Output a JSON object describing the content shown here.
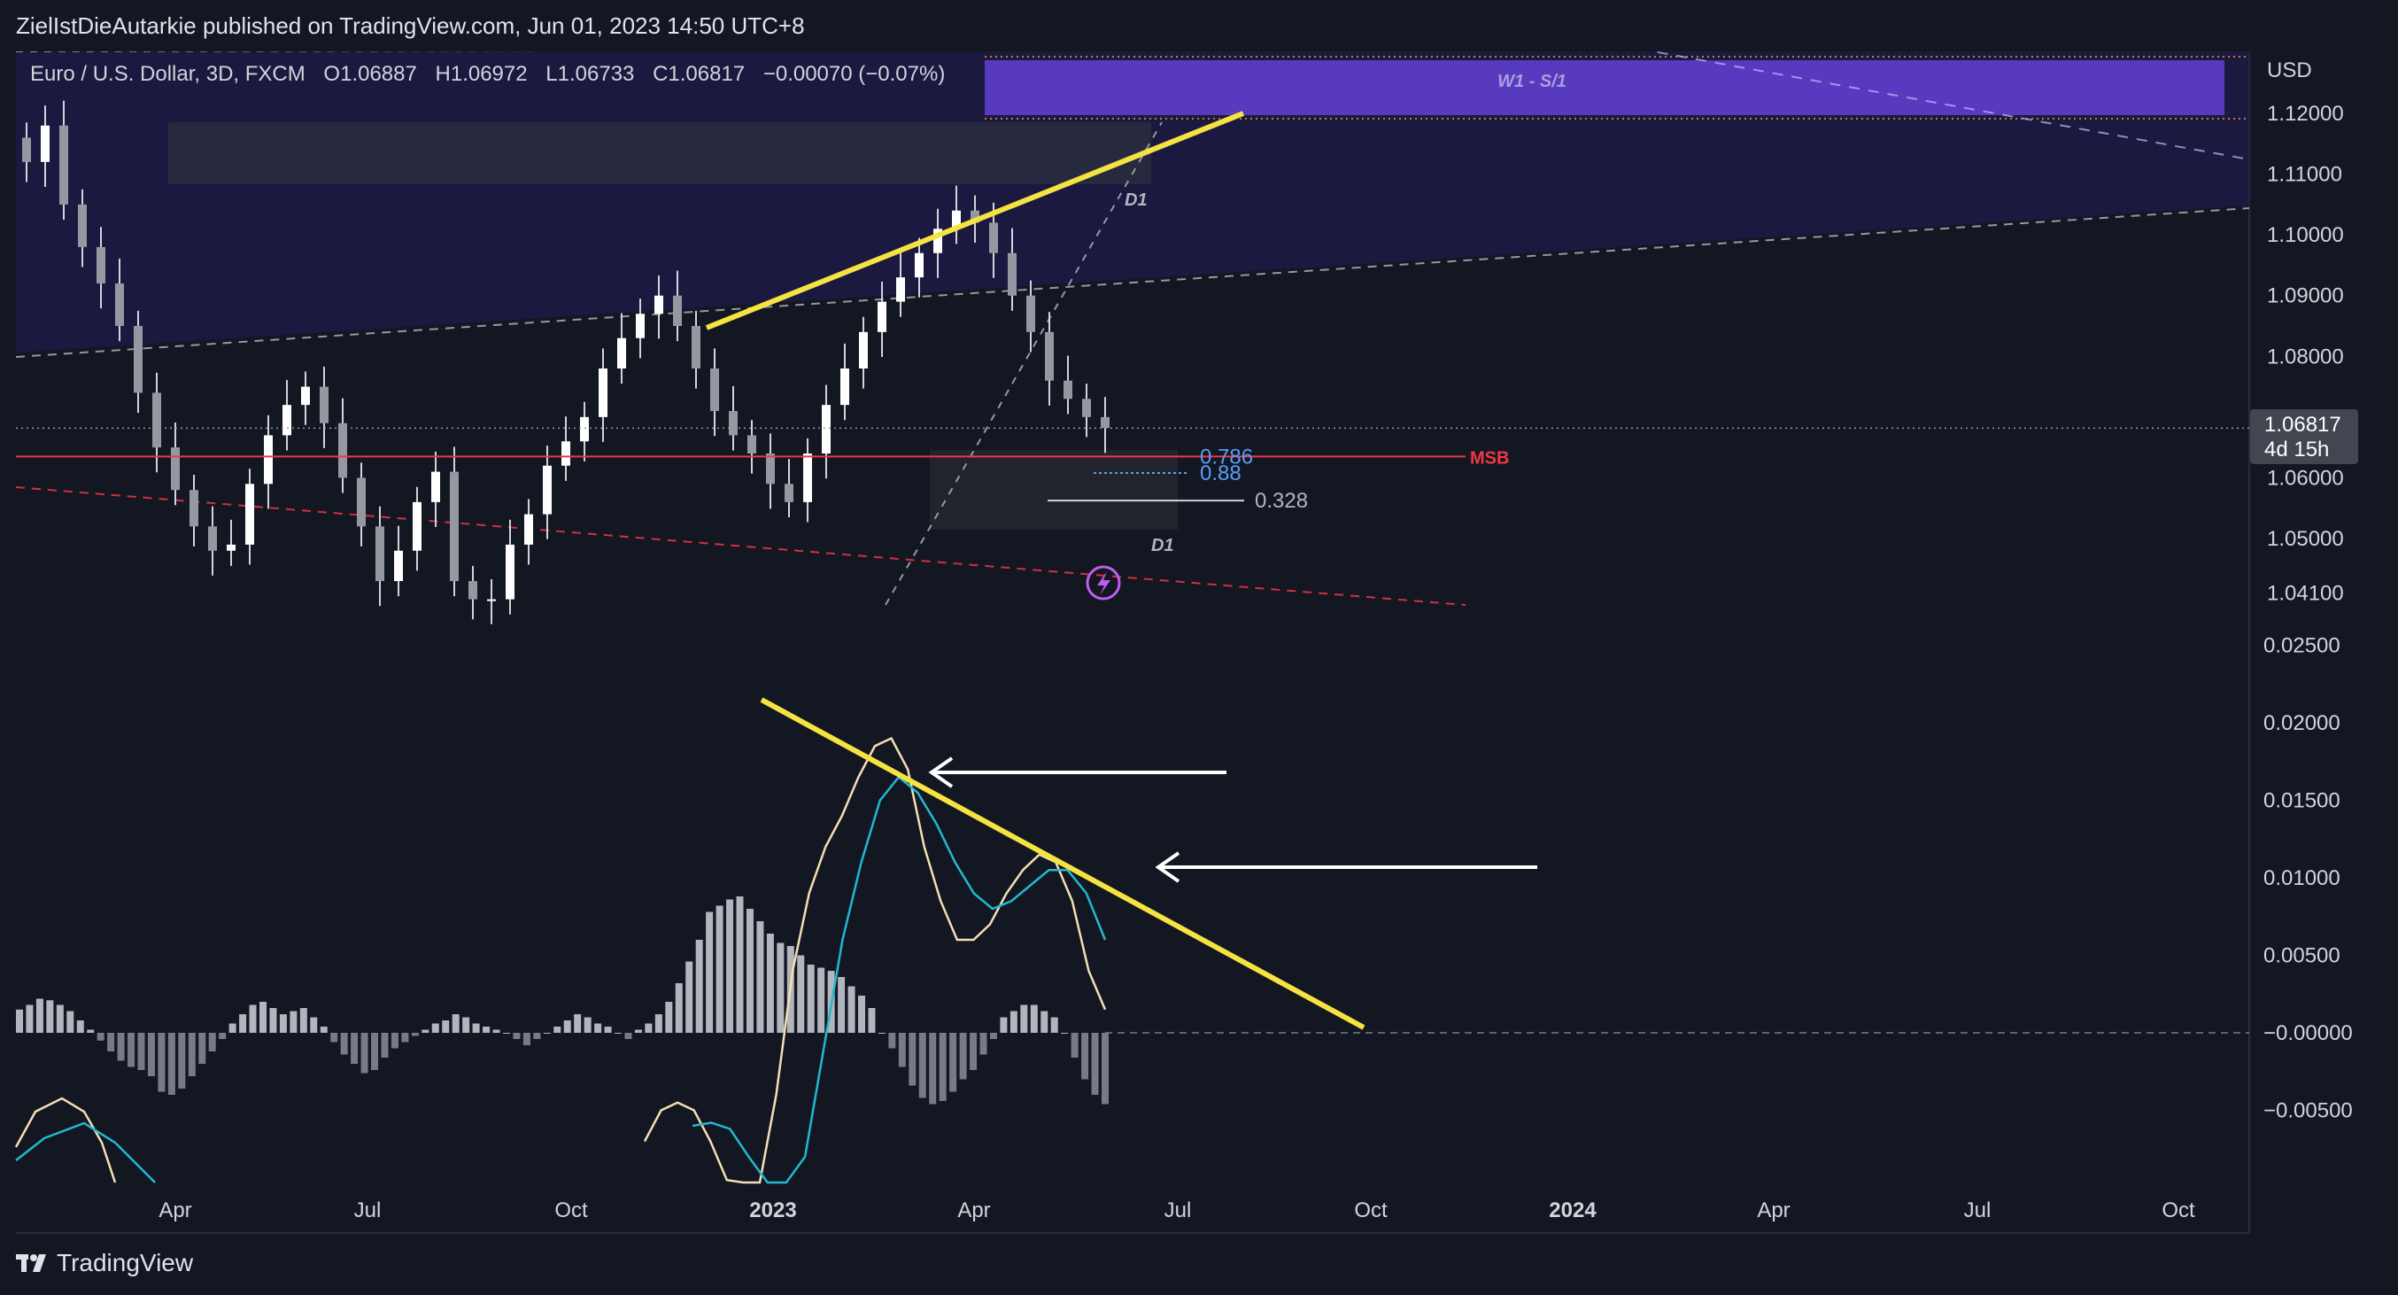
{
  "header": {
    "published": "ZielIstDieAutarkie published on TradingView.com, Jun 01, 2023 14:50 UTC+8"
  },
  "legend": {
    "symbol": "Euro / U.S. Dollar, 3D, FXCM",
    "open": "O1.06887",
    "high": "H1.06972",
    "low": "L1.06733",
    "close": "C1.06817",
    "change": "−0.00070 (−0.07%)"
  },
  "price_axis": {
    "currency": "USD",
    "current_price": "1.06817",
    "countdown": "4d 15h"
  },
  "annotations": {
    "zone_label": "W1 - S/1",
    "d1_top": "D1",
    "d1_bottom": "D1",
    "msb": "MSB",
    "fib_786": "0.786",
    "fib_88": "0.88",
    "fib_328": "0.328"
  },
  "branding": {
    "logo_text": "TradingView"
  },
  "colors": {
    "background": "#131722",
    "zone_purple": "#5b3cc4",
    "supply_zone": "#1f1b4a",
    "trendline_yellow": "#f5e342",
    "msb_red": "#f23645",
    "fib_blue": "#5b9cf6",
    "macd_line": "#f5deb3",
    "signal_line": "#22b8cf"
  },
  "chart_data": [
    {
      "type": "candlestick",
      "title": "Euro / U.S. Dollar, 3D, FXCM",
      "y_ticks": [
        "1.12000",
        "1.11000",
        "1.10000",
        "1.09000",
        "1.08000",
        "1.06000",
        "1.05000",
        "1.04100"
      ],
      "x_ticks": [
        "Apr",
        "Jul",
        "Oct",
        "2023",
        "Apr",
        "Jul",
        "Oct",
        "2024",
        "Apr",
        "Jul",
        "Oct"
      ],
      "ylim": [
        1.039,
        1.127
      ],
      "last_close": 1.06817,
      "levels": {
        "msb": 1.0635,
        "fib_0786": 1.0635,
        "fib_088": 1.0608,
        "fib_0328": 1.058
      },
      "approx_closes": [
        1.112,
        1.118,
        1.105,
        1.098,
        1.092,
        1.085,
        1.074,
        1.065,
        1.058,
        1.052,
        1.048,
        1.049,
        1.059,
        1.067,
        1.072,
        1.075,
        1.069,
        1.06,
        1.052,
        1.043,
        1.048,
        1.056,
        1.061,
        1.043,
        1.04,
        1.04,
        1.049,
        1.054,
        1.062,
        1.066,
        1.07,
        1.078,
        1.083,
        1.087,
        1.09,
        1.085,
        1.078,
        1.071,
        1.067,
        1.064,
        1.059,
        1.056,
        1.064,
        1.072,
        1.078,
        1.084,
        1.089,
        1.093,
        1.097,
        1.101,
        1.104,
        1.102,
        1.097,
        1.09,
        1.084,
        1.076,
        1.073,
        1.07,
        1.0682
      ]
    },
    {
      "type": "bar",
      "title": "MACD",
      "y_ticks": [
        "0.02500",
        "0.02000",
        "0.01500",
        "0.01000",
        "0.00500",
        "−0.00000",
        "−0.00500"
      ],
      "ylim": [
        -0.0095,
        0.0255
      ],
      "histogram": [
        0.0015,
        0.0018,
        0.0022,
        0.0021,
        0.0018,
        0.0014,
        0.0008,
        0.0002,
        -0.0005,
        -0.0012,
        -0.0018,
        -0.0022,
        -0.0024,
        -0.0028,
        -0.0038,
        -0.004,
        -0.0036,
        -0.0028,
        -0.002,
        -0.0012,
        -0.0004,
        0.0006,
        0.0012,
        0.0018,
        0.002,
        0.0016,
        0.0012,
        0.0014,
        0.0016,
        0.001,
        0.0004,
        -0.0006,
        -0.0014,
        -0.002,
        -0.0026,
        -0.0024,
        -0.0016,
        -0.001,
        -0.0006,
        -0.0002,
        0.0002,
        0.0006,
        0.0008,
        0.0012,
        0.001,
        0.0006,
        0.0004,
        0.0002,
        0.0,
        -0.0004,
        -0.0008,
        -0.0004,
        0.0,
        0.0004,
        0.0008,
        0.0012,
        0.001,
        0.0006,
        0.0004,
        0.0,
        -0.0004,
        0.0002,
        0.0006,
        0.0012,
        0.002,
        0.0032,
        0.0046,
        0.006,
        0.0078,
        0.0082,
        0.0086,
        0.0088,
        0.008,
        0.0072,
        0.0064,
        0.0058,
        0.0056,
        0.005,
        0.0044,
        0.0042,
        0.004,
        0.0036,
        0.003,
        0.0024,
        0.0016,
        0.0,
        -0.001,
        -0.0022,
        -0.0034,
        -0.0042,
        -0.0046,
        -0.0044,
        -0.0038,
        -0.003,
        -0.0024,
        -0.0014,
        -0.0004,
        0.001,
        0.0014,
        0.0018,
        0.0018,
        0.0014,
        0.001,
        0.0,
        -0.0016,
        -0.003,
        -0.004,
        -0.0046
      ],
      "macd": [
        -0.007,
        -0.005,
        -0.0045,
        -0.005,
        -0.007,
        -0.0095,
        -0.014,
        -0.011,
        -0.004,
        0.004,
        0.009,
        0.012,
        0.014,
        0.0165,
        0.0185,
        0.019,
        0.017,
        0.012,
        0.0085,
        0.006,
        0.006,
        0.007,
        0.009,
        0.0105,
        0.0115,
        0.011,
        0.0085,
        0.004,
        0.0015
      ],
      "signal": [
        -0.006,
        -0.0058,
        -0.0062,
        -0.008,
        -0.011,
        -0.014,
        -0.008,
        -0.001,
        0.006,
        0.011,
        0.015,
        0.0165,
        0.0155,
        0.0135,
        0.011,
        0.009,
        0.008,
        0.0085,
        0.0095,
        0.0105,
        0.0105,
        0.009,
        0.006
      ]
    }
  ]
}
